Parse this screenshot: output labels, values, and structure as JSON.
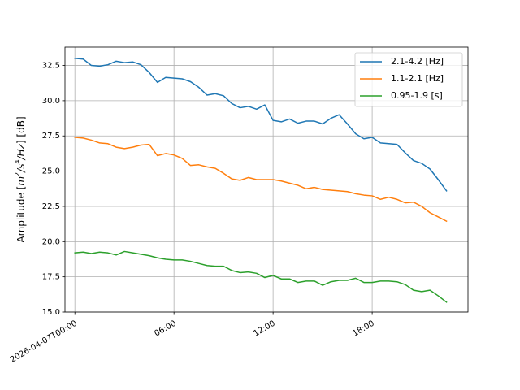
{
  "chart_data": {
    "type": "line",
    "title": "",
    "xlabel": "",
    "ylabel": "Amplitude [m²/s⁴/Hz] [dB]",
    "ylabel_parts": {
      "base": "m",
      "sup1": "2",
      "mid": "/s",
      "sup2": "4",
      "tail": "/Hz"
    },
    "ylim": [
      15,
      33.8
    ],
    "xlim": [
      -0.6,
      23.8
    ],
    "x_unit": "hour",
    "x_start_label": "2026-04-07T00:00",
    "x_ticks": [
      0,
      6,
      12,
      18
    ],
    "x_tick_labels": [
      "2026-04-07T00:00",
      "06:00",
      "12:00",
      "18:00"
    ],
    "y_ticks": [
      15.0,
      17.5,
      20.0,
      22.5,
      25.0,
      27.5,
      30.0,
      32.5
    ],
    "y_tick_labels": [
      "15.0",
      "17.5",
      "20.0",
      "22.5",
      "25.0",
      "27.5",
      "30.0",
      "32.5"
    ],
    "grid": true,
    "legend_position": "top-right",
    "x": [
      0,
      0.5,
      1,
      1.5,
      2,
      2.5,
      3,
      3.5,
      4,
      4.5,
      5,
      5.5,
      6,
      6.5,
      7,
      7.5,
      8,
      8.5,
      9,
      9.5,
      10,
      10.5,
      11,
      11.5,
      12,
      12.5,
      13,
      13.5,
      14,
      14.5,
      15,
      15.5,
      16,
      16.5,
      17,
      17.5,
      18,
      18.5,
      19,
      19.5,
      20,
      20.5,
      21,
      21.5,
      22,
      22.5
    ],
    "series": [
      {
        "name": "2.1-4.2 [Hz]",
        "color": "#1f77b4",
        "values": [
          33.0,
          32.95,
          32.5,
          32.45,
          32.55,
          32.8,
          32.7,
          32.75,
          32.55,
          32.0,
          31.3,
          31.65,
          31.6,
          31.55,
          31.35,
          30.95,
          30.4,
          30.5,
          30.35,
          29.8,
          29.5,
          29.6,
          29.4,
          29.7,
          28.6,
          28.5,
          28.7,
          28.4,
          28.55,
          28.55,
          28.35,
          28.75,
          29.0,
          28.35,
          27.65,
          27.3,
          27.4,
          27.0,
          26.95,
          26.9,
          26.3,
          25.75,
          25.55,
          25.15,
          24.4,
          23.6
        ]
      },
      {
        "name": "1.1-2.1 [Hz]",
        "color": "#ff7f0e",
        "values": [
          27.4,
          27.35,
          27.2,
          27.0,
          26.95,
          26.7,
          26.6,
          26.7,
          26.85,
          26.9,
          26.1,
          26.25,
          26.15,
          25.9,
          25.4,
          25.45,
          25.3,
          25.2,
          24.85,
          24.45,
          24.35,
          24.55,
          24.4,
          24.4,
          24.4,
          24.3,
          24.15,
          24.0,
          23.75,
          23.85,
          23.7,
          23.65,
          23.6,
          23.55,
          23.4,
          23.3,
          23.25,
          23.0,
          23.15,
          23.0,
          22.75,
          22.8,
          22.5,
          22.05,
          21.75,
          21.45
        ]
      },
      {
        "name": "0.95-1.9 [s]",
        "color": "#2ca02c",
        "values": [
          19.2,
          19.25,
          19.15,
          19.25,
          19.2,
          19.05,
          19.3,
          19.2,
          19.1,
          19.0,
          18.85,
          18.75,
          18.7,
          18.7,
          18.6,
          18.45,
          18.3,
          18.25,
          18.25,
          17.95,
          17.8,
          17.85,
          17.75,
          17.45,
          17.6,
          17.35,
          17.35,
          17.1,
          17.2,
          17.2,
          16.9,
          17.15,
          17.25,
          17.25,
          17.4,
          17.1,
          17.1,
          17.2,
          17.2,
          17.15,
          16.95,
          16.55,
          16.45,
          16.55,
          16.15,
          15.7
        ]
      }
    ]
  }
}
